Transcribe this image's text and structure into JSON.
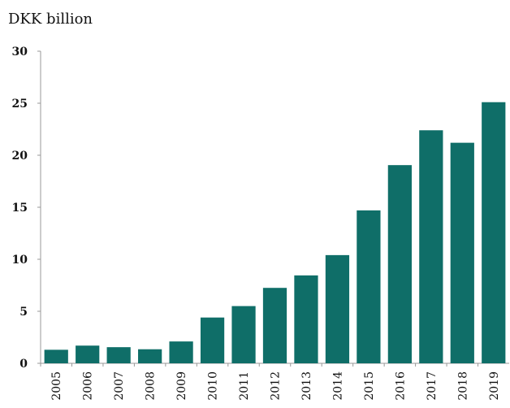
{
  "chart_data": {
    "type": "bar",
    "unit_label": "DKK billion",
    "categories": [
      "2005",
      "2006",
      "2007",
      "2008",
      "2009",
      "2010",
      "2011",
      "2012",
      "2013",
      "2014",
      "2015",
      "2016",
      "2017",
      "2018",
      "2019"
    ],
    "values": [
      1.3,
      1.7,
      1.55,
      1.35,
      2.1,
      4.4,
      5.5,
      7.25,
      8.45,
      10.4,
      14.7,
      19.05,
      22.4,
      21.2,
      25.1
    ],
    "ylim": [
      0,
      30
    ],
    "yticks": [
      0,
      5,
      10,
      15,
      20,
      25,
      30
    ],
    "bar_color": "#0f6e68",
    "axis_color": "#999999",
    "grid": false,
    "legend": false
  }
}
